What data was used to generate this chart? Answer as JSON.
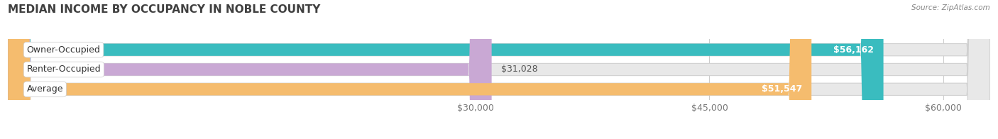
{
  "title": "MEDIAN INCOME BY OCCUPANCY IN NOBLE COUNTY",
  "source": "Source: ZipAtlas.com",
  "categories": [
    "Owner-Occupied",
    "Renter-Occupied",
    "Average"
  ],
  "values": [
    56162,
    31028,
    51547
  ],
  "bar_colors": [
    "#3abcbf",
    "#c9a8d4",
    "#f5bc6e"
  ],
  "value_labels": [
    "$56,162",
    "$31,028",
    "$51,547"
  ],
  "value_label_inside": [
    true,
    false,
    true
  ],
  "x_ticks": [
    30000,
    45000,
    60000
  ],
  "x_tick_labels": [
    "$30,000",
    "$45,000",
    "$60,000"
  ],
  "xmin": 0,
  "xmax": 63000,
  "bar_height": 0.62,
  "background_color": "#ffffff",
  "bg_track_color": "#e8e8e8",
  "title_fontsize": 11,
  "tick_fontsize": 9,
  "label_fontsize": 9,
  "value_fontsize": 9
}
